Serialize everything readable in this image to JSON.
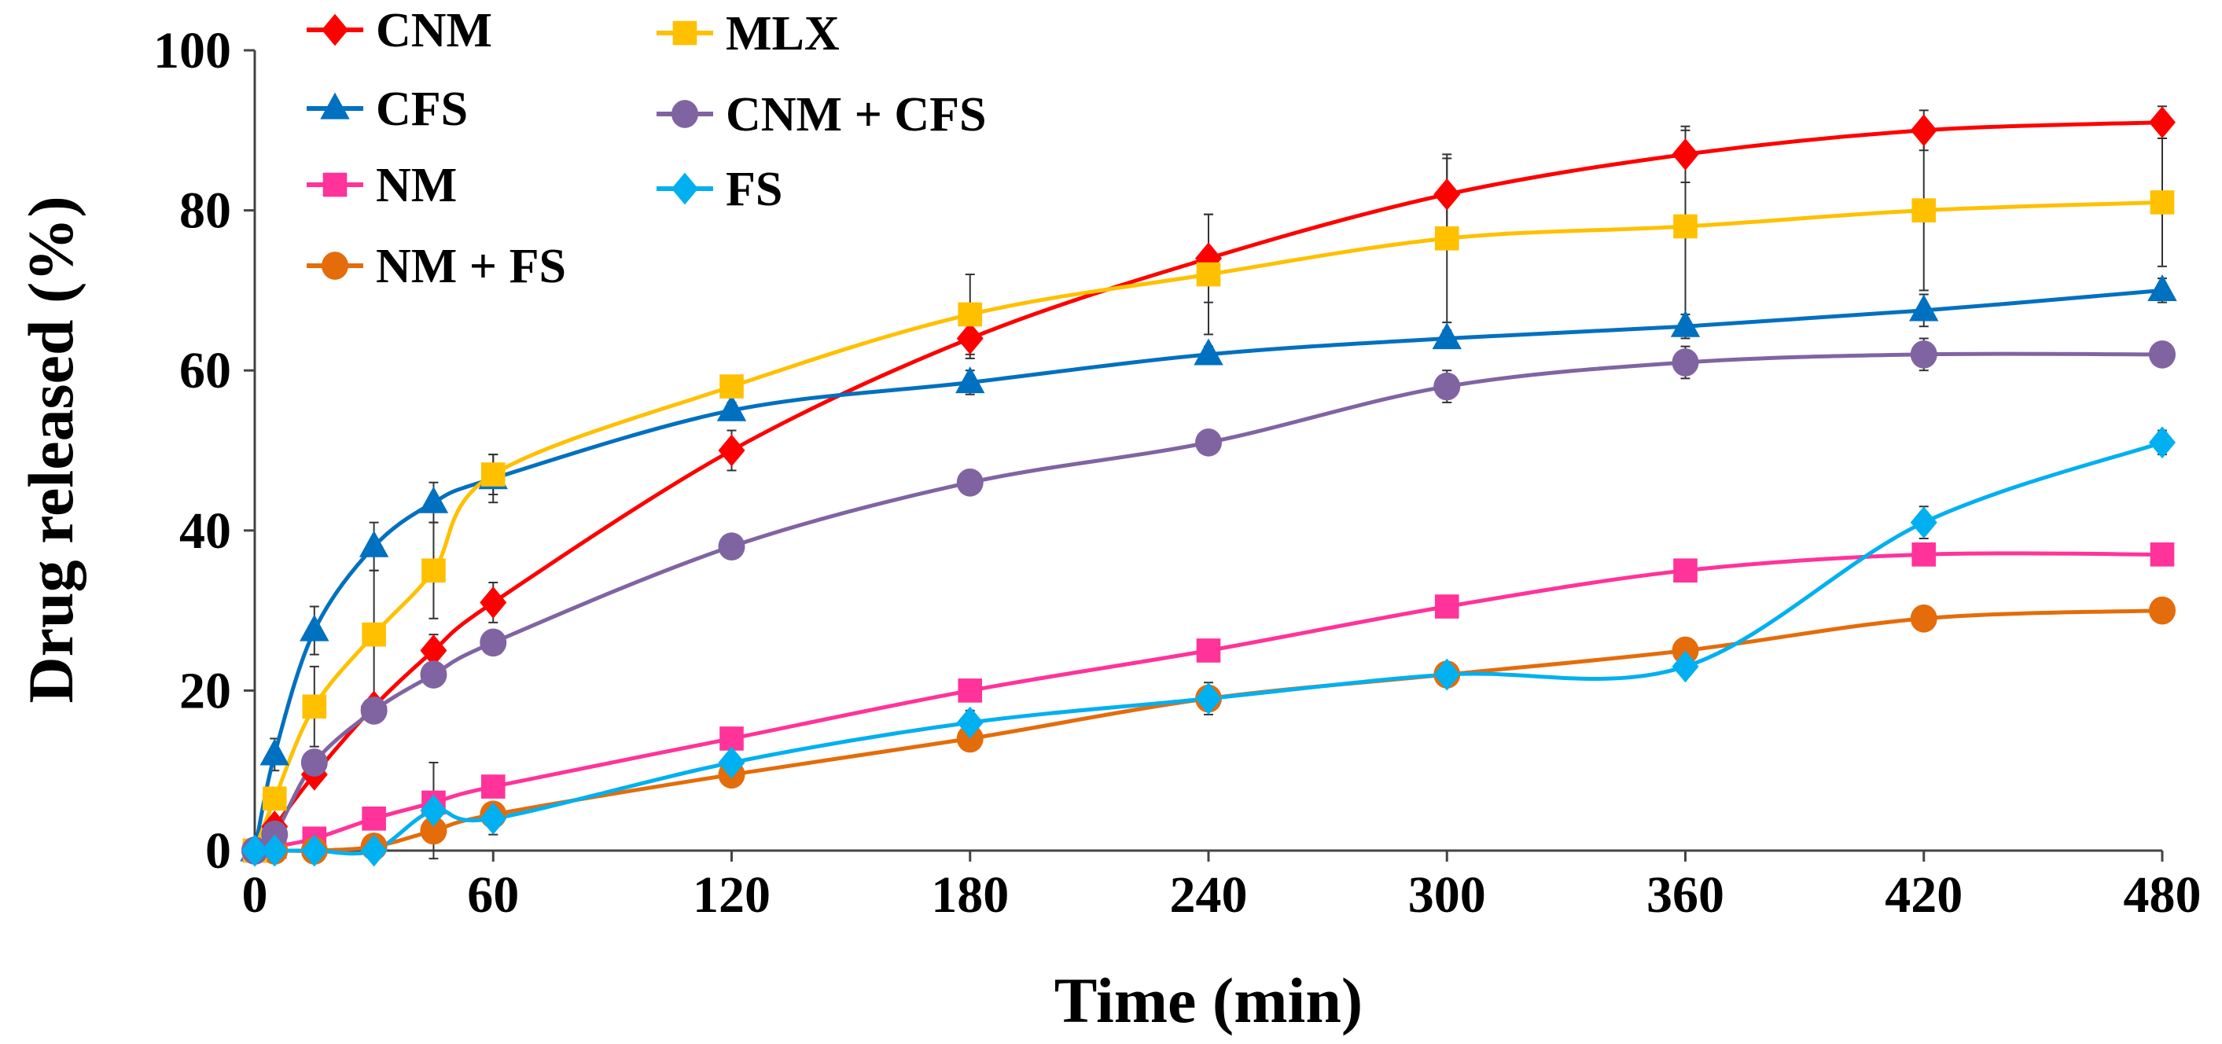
{
  "chart_data": {
    "type": "line",
    "title": "",
    "xlabel": "Time (min)",
    "ylabel": "Drug released (%)",
    "xlim": [
      0,
      480
    ],
    "ylim": [
      0,
      100
    ],
    "xticks": [
      0,
      60,
      120,
      180,
      240,
      300,
      360,
      420,
      480
    ],
    "yticks": [
      0,
      20,
      40,
      60,
      80,
      100
    ],
    "grid": false,
    "legend_placement": "top-left",
    "x": [
      0,
      5,
      15,
      30,
      45,
      60,
      120,
      180,
      240,
      300,
      360,
      420,
      480
    ],
    "series": [
      {
        "name": "CNM",
        "color": "#FF0000",
        "marker": "diamond",
        "values": [
          0,
          3,
          9.5,
          18,
          25,
          31,
          50,
          64,
          74,
          82,
          87,
          90,
          91
        ],
        "errors": [
          0,
          1,
          1,
          1,
          2,
          2.5,
          2.5,
          2.5,
          5.5,
          4.5,
          3.5,
          2.5,
          2
        ]
      },
      {
        "name": "CFS",
        "color": "#0070C0",
        "marker": "triangle",
        "values": [
          0,
          12,
          27.5,
          38,
          43.5,
          46.5,
          55,
          58.5,
          62,
          64,
          65.5,
          67.5,
          70
        ],
        "errors": [
          0,
          2,
          3,
          3,
          2.5,
          3,
          1,
          1.5,
          1,
          1,
          1.5,
          2,
          1.5
        ]
      },
      {
        "name": "NM",
        "color": "#FF3399",
        "marker": "square",
        "values": [
          0,
          0.5,
          1.5,
          4,
          6,
          8,
          14,
          20,
          25,
          30.5,
          35,
          37,
          37
        ],
        "errors": [
          0,
          0,
          0,
          0,
          0,
          0,
          0,
          0,
          0,
          0,
          0,
          0,
          0
        ]
      },
      {
        "name": "NM + FS",
        "color": "#E46C0A",
        "marker": "circle",
        "values": [
          0,
          0,
          0,
          0.5,
          2.5,
          4.5,
          9.5,
          14,
          19,
          22,
          25,
          29,
          30
        ],
        "errors": [
          0,
          0,
          0,
          0,
          0,
          1.5,
          0,
          0,
          1.5,
          1.5,
          1.5,
          0,
          0
        ]
      },
      {
        "name": "MLX",
        "color": "#FFC000",
        "marker": "square",
        "values": [
          0,
          6.5,
          18,
          27,
          35,
          47,
          58,
          67,
          72,
          76.5,
          78,
          80,
          81
        ],
        "errors": [
          0,
          1,
          5,
          8,
          6,
          2.5,
          1,
          5,
          7.5,
          10.5,
          12,
          10,
          8
        ]
      },
      {
        "name": "CNM + CFS",
        "color": "#8064A2",
        "marker": "circle",
        "values": [
          0,
          2,
          11,
          17.5,
          22,
          26,
          38,
          46,
          51,
          58,
          61,
          62,
          62
        ],
        "errors": [
          0,
          0,
          0,
          0,
          0,
          0,
          0,
          0,
          1,
          2,
          2,
          2,
          1.5
        ]
      },
      {
        "name": "FS",
        "color": "#00B0F0",
        "marker": "diamond",
        "values": [
          0,
          0,
          0,
          0,
          5,
          4,
          11,
          16,
          19,
          22,
          23,
          41,
          51
        ],
        "errors": [
          0,
          0,
          0,
          0,
          6,
          2,
          0,
          1.5,
          2,
          0,
          0,
          2,
          1.5
        ]
      }
    ]
  }
}
